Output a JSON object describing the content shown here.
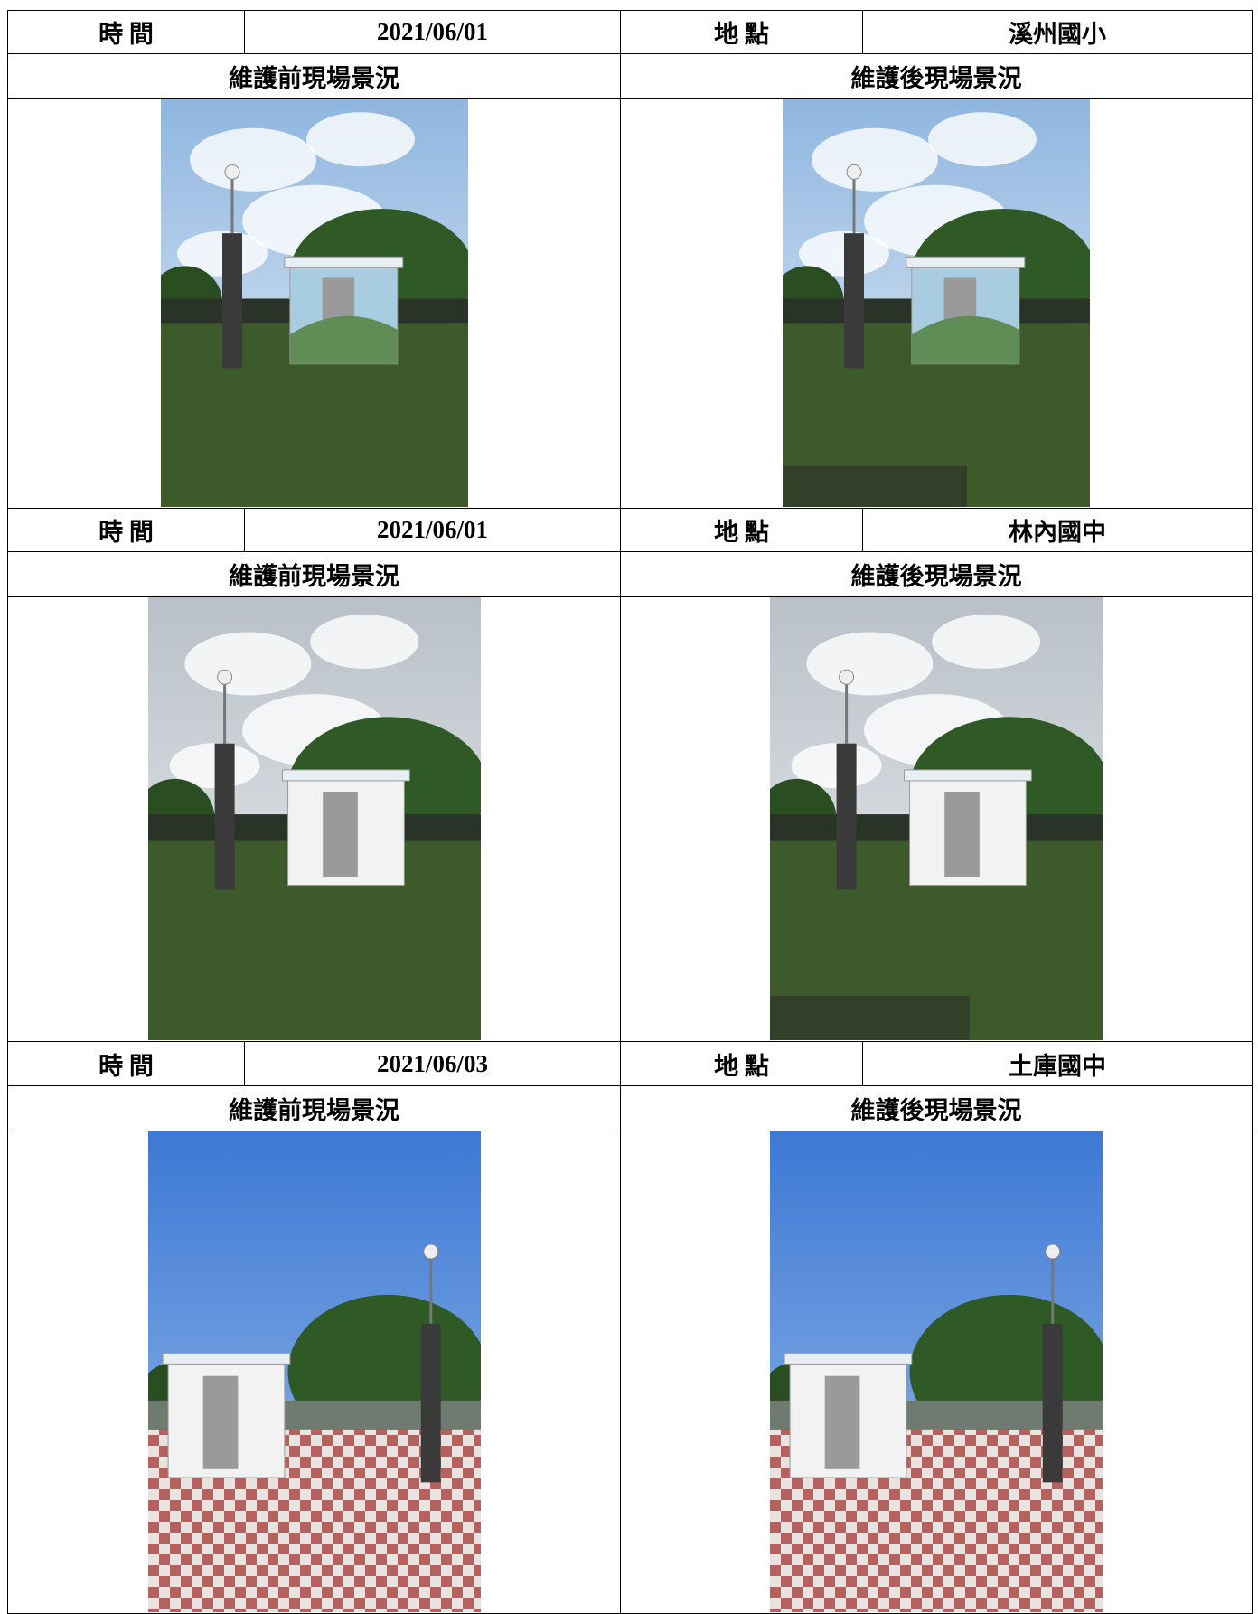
{
  "entries": [
    {
      "time_label": "時 間",
      "date": "2021/06/01",
      "place_label": "地 點",
      "location": "溪州國小",
      "before": "維護前現場景況",
      "after": "維護後現場景況"
    },
    {
      "time_label": "時 間",
      "date": "2021/06/01",
      "place_label": "地 點",
      "location": "林內國中",
      "before": "維護前現場景況",
      "after": "維護後現場景況"
    },
    {
      "time_label": "時 間",
      "date": "2021/06/03",
      "place_label": "地 點",
      "location": "土庫國中",
      "before": "維護前現場景況",
      "after": "維護後現場景況"
    }
  ]
}
